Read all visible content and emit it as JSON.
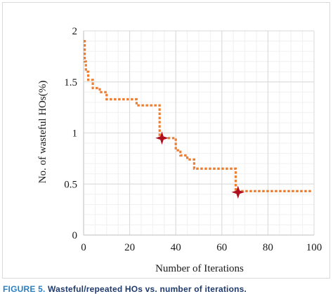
{
  "chart_data": {
    "type": "line",
    "title": "",
    "xlabel": "Number of Iterations",
    "ylabel": "No. of wasteful HOs(%)",
    "xlim": [
      0,
      100
    ],
    "ylim": [
      0,
      2
    ],
    "x_ticks": [
      "0",
      "20",
      "40",
      "60",
      "80",
      "100"
    ],
    "y_ticks": [
      "0",
      "0.5",
      "1",
      "1.5",
      "2"
    ],
    "x_tick_values": [
      0,
      20,
      40,
      60,
      80,
      100
    ],
    "y_tick_values": [
      0,
      0.5,
      1,
      1.5,
      2
    ],
    "grid": true,
    "legend": "none",
    "series": [
      {
        "style": "dotted",
        "color": "#ed7d31",
        "x": [
          0,
          0.5,
          0.5,
          1,
          1,
          2,
          2,
          4,
          4,
          7,
          7,
          10,
          10,
          23,
          23,
          33,
          33,
          40,
          40,
          42,
          42,
          45,
          45,
          48,
          48,
          66,
          66,
          99
        ],
        "y": [
          1.9,
          1.9,
          1.7,
          1.7,
          1.6,
          1.6,
          1.52,
          1.52,
          1.44,
          1.44,
          1.4,
          1.4,
          1.33,
          1.33,
          1.27,
          1.27,
          0.95,
          0.95,
          0.83,
          0.83,
          0.78,
          0.78,
          0.74,
          0.74,
          0.65,
          0.65,
          0.43,
          0.43
        ]
      }
    ],
    "markers": [
      {
        "x": 34,
        "y": 0.95,
        "shape": "four-point-star",
        "color": "#b0101e"
      },
      {
        "x": 67,
        "y": 0.42,
        "shape": "four-point-star",
        "color": "#b0101e"
      }
    ]
  },
  "caption": {
    "label": "FIGURE 5.",
    "text": "Wasteful/repeated HOs vs. number of iterations."
  }
}
